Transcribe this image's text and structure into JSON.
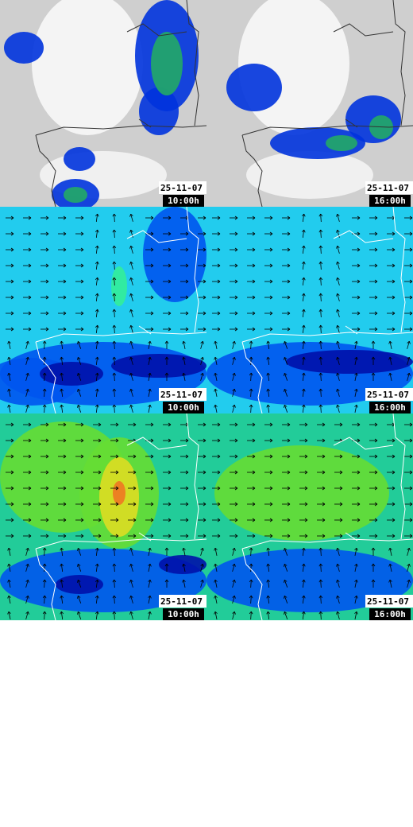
{
  "panels": [
    {
      "date": "25-11-07",
      "time": "10:00h"
    },
    {
      "date": "25-11-07",
      "time": "16:00h"
    },
    {
      "date": "25-11-07",
      "time": "10:00h"
    },
    {
      "date": "25-11-07",
      "time": "16:00h"
    },
    {
      "date": "25-11-07",
      "time": "10:00h"
    },
    {
      "date": "25-11-07",
      "time": "16:00h"
    }
  ]
}
